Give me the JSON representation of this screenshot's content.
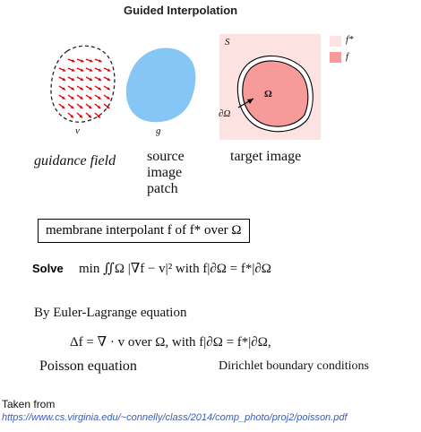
{
  "title": "Guided Interpolation",
  "figure": {
    "guidance_symbol": "v",
    "source_symbol": "g",
    "target_symbol": "S",
    "omega_symbol": "Ω",
    "boundary_symbol": "∂Ω",
    "legend": [
      {
        "label": "f*",
        "color": "#fde2e2"
      },
      {
        "label": "f",
        "color": "#f79a9a"
      }
    ],
    "source_color": "#86c6f4",
    "captions": {
      "guidance": "guidance field",
      "source_line1": "source",
      "source_line2": "image",
      "source_line3": "patch",
      "target": "target image"
    }
  },
  "membrane_box": "membrane interpolant f of f* over Ω",
  "solve_label": "Solve",
  "solve_eq": "min ∬Ω |∇f − v|² with f|∂Ω = f*|∂Ω",
  "by_text": "By Euler-Lagrange equation",
  "poisson_eq": "Δf = ∇ · v over Ω, with f|∂Ω = f*|∂Ω,",
  "poisson_label": "Poisson equation",
  "dirichlet_label": "Dirichlet boundary conditions",
  "taken_from": "Taken from",
  "source_url": "https://www.cs.virginia.edu/~connelly/class/2014/comp_photo/proj2/poisson.pdf"
}
